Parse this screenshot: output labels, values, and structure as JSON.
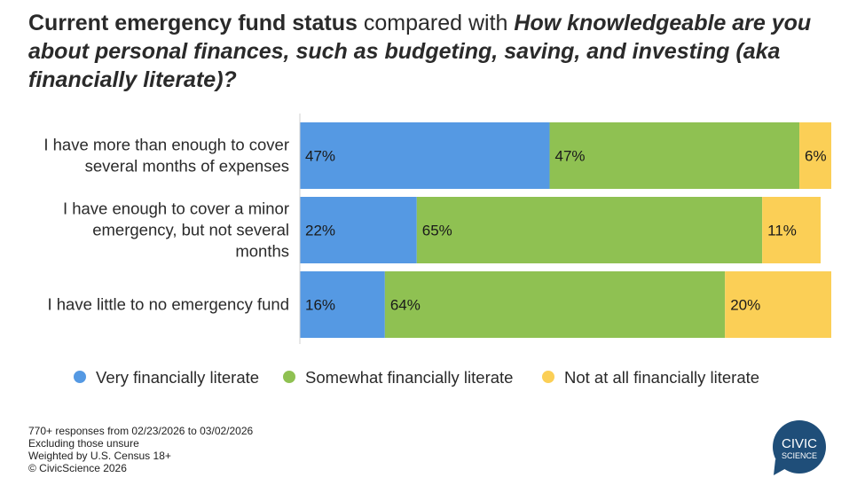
{
  "title": {
    "part1": "Current emergency fund status",
    "part2": " compared with ",
    "part3": "How knowledgeable are you about personal finances, such as budgeting, saving, and investing (aka financially literate)?"
  },
  "colors": {
    "very": "#5599e3",
    "somewhat": "#8fc152",
    "not": "#fbcf56"
  },
  "chart_data": {
    "type": "bar",
    "orientation": "horizontal",
    "stacked": true,
    "categories": [
      [
        "I have more than enough to cover",
        "several months of expenses"
      ],
      [
        "I have enough to cover a minor",
        "emergency, but not several",
        "months"
      ],
      [
        "I have little to no emergency fund"
      ]
    ],
    "series": [
      {
        "name": "Very financially literate",
        "values": [
          47,
          22,
          16
        ]
      },
      {
        "name": "Somewhat financially literate",
        "values": [
          47,
          65,
          64
        ]
      },
      {
        "name": "Not at all financially literate",
        "values": [
          6,
          11,
          20
        ]
      }
    ],
    "unit": "%",
    "xlim": [
      0,
      100
    ],
    "legend_position": "bottom"
  },
  "footnotes": [
    "770+ responses from 02/23/2026 to 03/02/2026",
    "Excluding those unsure",
    "Weighted by U.S. Census 18+",
    "© CivicScience 2026"
  ],
  "logo": {
    "line1": "CIVIC",
    "line2": "SCIENCE",
    "color": "#1f4e79"
  }
}
